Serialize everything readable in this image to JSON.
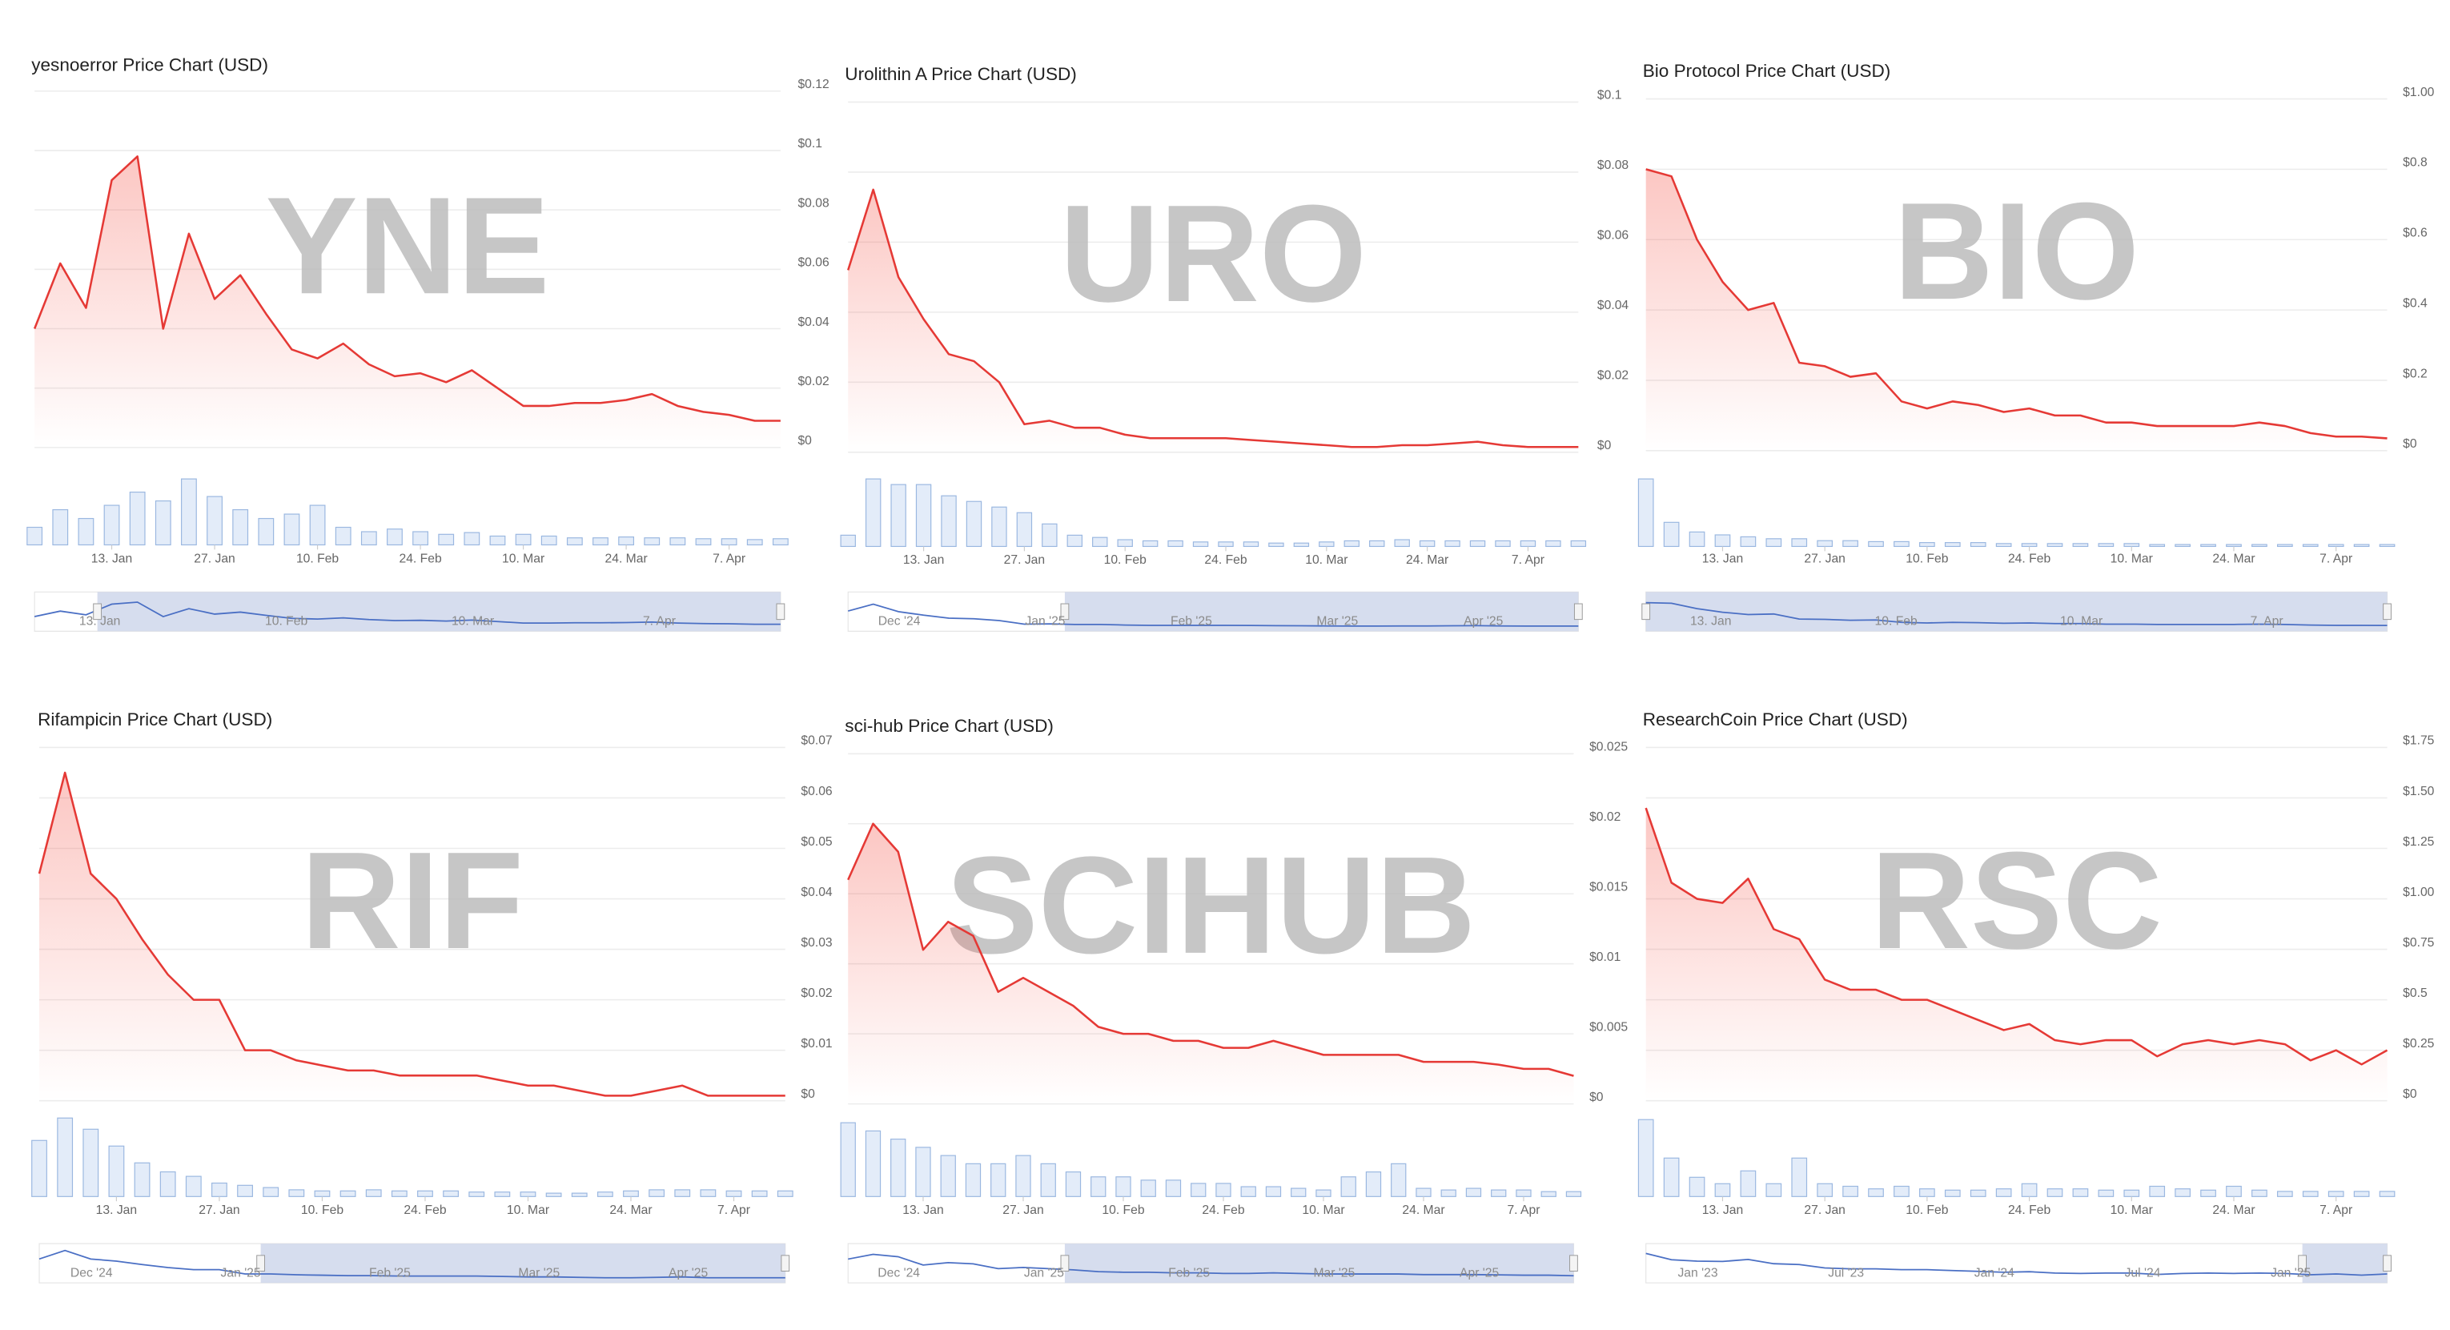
{
  "chart_data": [
    {
      "type": "line",
      "title": "yesnoerror Price Chart (USD)",
      "watermark": "YNE",
      "color": "#e53935",
      "volume_color": "#9ab7e0",
      "values": [
        0.04,
        0.062,
        0.047,
        0.09,
        0.098,
        0.04,
        0.072,
        0.05,
        0.058,
        0.045,
        0.033,
        0.03,
        0.035,
        0.028,
        0.024,
        0.025,
        0.022,
        0.026,
        0.02,
        0.014,
        0.014,
        0.015,
        0.015,
        0.016,
        0.018,
        0.014,
        0.012,
        0.011,
        0.009,
        0.009
      ],
      "volume": [
        20,
        40,
        30,
        45,
        60,
        50,
        75,
        55,
        40,
        30,
        35,
        45,
        20,
        15,
        18,
        15,
        12,
        14,
        10,
        12,
        10,
        8,
        8,
        9,
        8,
        8,
        7,
        7,
        6,
        7
      ],
      "xlim": [
        0,
        29
      ],
      "xticks": [
        {
          "value": 3,
          "label": "13. Jan"
        },
        {
          "value": 7,
          "label": "27. Jan"
        },
        {
          "value": 11,
          "label": "10. Feb"
        },
        {
          "value": 15,
          "label": "24. Feb"
        },
        {
          "value": 19,
          "label": "10. Mar"
        },
        {
          "value": 23,
          "label": "24. Mar"
        },
        {
          "value": 27,
          "label": "7. Apr"
        }
      ],
      "ylim": [
        0,
        0.12
      ],
      "yticks": [
        {
          "value": 0,
          "label": "$0"
        },
        {
          "value": 0.02,
          "label": "$0.02"
        },
        {
          "value": 0.04,
          "label": "$0.04"
        },
        {
          "value": 0.06,
          "label": "$0.06"
        },
        {
          "value": 0.08,
          "label": "$0.08"
        },
        {
          "value": 0.1,
          "label": "$0.1"
        },
        {
          "value": 0.12,
          "label": "$0.12"
        }
      ],
      "grid": true,
      "navigator_labels": [
        "13. Jan",
        "10. Feb",
        "10. Mar",
        "7. Apr"
      ]
    },
    {
      "type": "line",
      "title": "Urolithin A Price Chart (USD)",
      "watermark": "URO",
      "color": "#e53935",
      "volume_color": "#9ab7e0",
      "values": [
        0.052,
        0.075,
        0.05,
        0.038,
        0.028,
        0.026,
        0.02,
        0.008,
        0.009,
        0.007,
        0.007,
        0.005,
        0.004,
        0.004,
        0.004,
        0.004,
        0.0035,
        0.003,
        0.0025,
        0.002,
        0.0015,
        0.0015,
        0.002,
        0.002,
        0.0025,
        0.003,
        0.002,
        0.0015,
        0.0015,
        0.0015
      ],
      "volume": [
        10,
        60,
        55,
        55,
        45,
        40,
        35,
        30,
        20,
        10,
        8,
        6,
        5,
        5,
        4,
        4,
        4,
        3,
        3,
        4,
        5,
        5,
        6,
        5,
        5,
        5,
        5,
        5,
        5,
        5
      ],
      "xlim": [
        0,
        29
      ],
      "xticks": [
        {
          "value": 3,
          "label": "13. Jan"
        },
        {
          "value": 7,
          "label": "27. Jan"
        },
        {
          "value": 11,
          "label": "10. Feb"
        },
        {
          "value": 15,
          "label": "24. Feb"
        },
        {
          "value": 19,
          "label": "10. Mar"
        },
        {
          "value": 23,
          "label": "24. Mar"
        },
        {
          "value": 27,
          "label": "7. Apr"
        }
      ],
      "ylim": [
        0,
        0.1
      ],
      "yticks": [
        {
          "value": 0,
          "label": "$0"
        },
        {
          "value": 0.02,
          "label": "$0.02"
        },
        {
          "value": 0.04,
          "label": "$0.04"
        },
        {
          "value": 0.06,
          "label": "$0.06"
        },
        {
          "value": 0.08,
          "label": "$0.08"
        },
        {
          "value": 0.1,
          "label": "$0.1"
        }
      ],
      "grid": true,
      "navigator_labels": [
        "Dec '24",
        "Jan '25",
        "Feb '25",
        "Mar '25",
        "Apr '25"
      ]
    },
    {
      "type": "line",
      "title": "Bio Protocol Price Chart (USD)",
      "watermark": "BIO",
      "color": "#e53935",
      "volume_color": "#9ab7e0",
      "values": [
        0.8,
        0.78,
        0.6,
        0.48,
        0.4,
        0.42,
        0.25,
        0.24,
        0.21,
        0.22,
        0.14,
        0.12,
        0.14,
        0.13,
        0.11,
        0.12,
        0.1,
        0.1,
        0.08,
        0.08,
        0.07,
        0.07,
        0.07,
        0.07,
        0.08,
        0.07,
        0.05,
        0.04,
        0.04,
        0.035
      ],
      "volume": [
        70,
        25,
        15,
        12,
        10,
        8,
        8,
        6,
        6,
        5,
        5,
        4,
        4,
        4,
        3,
        3,
        3,
        3,
        3,
        3,
        2,
        2,
        2,
        2,
        2,
        2,
        2,
        2,
        2,
        2
      ],
      "xlim": [
        0,
        29
      ],
      "xticks": [
        {
          "value": 3,
          "label": "13. Jan"
        },
        {
          "value": 7,
          "label": "27. Jan"
        },
        {
          "value": 11,
          "label": "10. Feb"
        },
        {
          "value": 15,
          "label": "24. Feb"
        },
        {
          "value": 19,
          "label": "10. Mar"
        },
        {
          "value": 23,
          "label": "24. Mar"
        },
        {
          "value": 27,
          "label": "7. Apr"
        }
      ],
      "ylim": [
        0,
        1
      ],
      "yticks": [
        {
          "value": 0,
          "label": "$0"
        },
        {
          "value": 0.2,
          "label": "$0.2"
        },
        {
          "value": 0.4,
          "label": "$0.4"
        },
        {
          "value": 0.6,
          "label": "$0.6"
        },
        {
          "value": 0.8,
          "label": "$0.8"
        },
        {
          "value": 1,
          "label": "$1.00"
        }
      ],
      "grid": true,
      "navigator_labels": [
        "13. Jan",
        "10. Feb",
        "10. Mar",
        "7. Apr"
      ]
    },
    {
      "type": "line",
      "title": "Rifampicin Price Chart (USD)",
      "watermark": "RIF",
      "color": "#e53935",
      "volume_color": "#9ab7e0",
      "values": [
        0.045,
        0.065,
        0.045,
        0.04,
        0.032,
        0.025,
        0.02,
        0.02,
        0.01,
        0.01,
        0.008,
        0.007,
        0.006,
        0.006,
        0.005,
        0.005,
        0.005,
        0.005,
        0.004,
        0.003,
        0.003,
        0.002,
        0.001,
        0.001,
        0.002,
        0.003,
        0.001,
        0.001,
        0.001,
        0.001
      ],
      "volume": [
        50,
        70,
        60,
        45,
        30,
        22,
        18,
        12,
        10,
        8,
        6,
        5,
        5,
        6,
        5,
        5,
        5,
        4,
        4,
        4,
        3,
        3,
        4,
        5,
        6,
        6,
        6,
        5,
        5,
        5
      ],
      "xlim": [
        0,
        29
      ],
      "xticks": [
        {
          "value": 3,
          "label": "13. Jan"
        },
        {
          "value": 7,
          "label": "27. Jan"
        },
        {
          "value": 11,
          "label": "10. Feb"
        },
        {
          "value": 15,
          "label": "24. Feb"
        },
        {
          "value": 19,
          "label": "10. Mar"
        },
        {
          "value": 23,
          "label": "24. Mar"
        },
        {
          "value": 27,
          "label": "7. Apr"
        }
      ],
      "ylim": [
        0,
        0.07
      ],
      "yticks": [
        {
          "value": 0,
          "label": "$0"
        },
        {
          "value": 0.01,
          "label": "$0.01"
        },
        {
          "value": 0.02,
          "label": "$0.02"
        },
        {
          "value": 0.03,
          "label": "$0.03"
        },
        {
          "value": 0.04,
          "label": "$0.04"
        },
        {
          "value": 0.05,
          "label": "$0.05"
        },
        {
          "value": 0.06,
          "label": "$0.06"
        },
        {
          "value": 0.07,
          "label": "$0.07"
        }
      ],
      "grid": true,
      "navigator_labels": [
        "Dec '24",
        "Jan '25",
        "Feb '25",
        "Mar '25",
        "Apr '25"
      ]
    },
    {
      "type": "line",
      "title": "sci-hub Price Chart (USD)",
      "watermark": "SCIHUB",
      "color": "#e53935",
      "volume_color": "#9ab7e0",
      "values": [
        0.016,
        0.02,
        0.018,
        0.011,
        0.013,
        0.012,
        0.008,
        0.009,
        0.008,
        0.007,
        0.0055,
        0.005,
        0.005,
        0.0045,
        0.0045,
        0.004,
        0.004,
        0.0045,
        0.004,
        0.0035,
        0.0035,
        0.0035,
        0.0035,
        0.003,
        0.003,
        0.003,
        0.0028,
        0.0025,
        0.0025,
        0.002
      ],
      "volume": [
        45,
        40,
        35,
        30,
        25,
        20,
        20,
        25,
        20,
        15,
        12,
        12,
        10,
        10,
        8,
        8,
        6,
        6,
        5,
        4,
        12,
        15,
        20,
        5,
        4,
        5,
        4,
        4,
        3,
        3
      ],
      "xlim": [
        0,
        29
      ],
      "xticks": [
        {
          "value": 3,
          "label": "13. Jan"
        },
        {
          "value": 7,
          "label": "27. Jan"
        },
        {
          "value": 11,
          "label": "10. Feb"
        },
        {
          "value": 15,
          "label": "24. Feb"
        },
        {
          "value": 19,
          "label": "10. Mar"
        },
        {
          "value": 23,
          "label": "24. Mar"
        },
        {
          "value": 27,
          "label": "7. Apr"
        }
      ],
      "ylim": [
        0,
        0.025
      ],
      "yticks": [
        {
          "value": 0,
          "label": "$0"
        },
        {
          "value": 0.005,
          "label": "$0.005"
        },
        {
          "value": 0.01,
          "label": "$0.01"
        },
        {
          "value": 0.015,
          "label": "$0.015"
        },
        {
          "value": 0.02,
          "label": "$0.02"
        },
        {
          "value": 0.025,
          "label": "$0.025"
        }
      ],
      "grid": true,
      "navigator_labels": [
        "Dec '24",
        "Jan '25",
        "Feb '25",
        "Mar '25",
        "Apr '25"
      ]
    },
    {
      "type": "line",
      "title": "ResearchCoin Price Chart (USD)",
      "watermark": "RSC",
      "color": "#e53935",
      "volume_color": "#9ab7e0",
      "values": [
        1.45,
        1.08,
        1.0,
        0.98,
        1.1,
        0.85,
        0.8,
        0.6,
        0.55,
        0.55,
        0.5,
        0.5,
        0.45,
        0.4,
        0.35,
        0.38,
        0.3,
        0.28,
        0.3,
        0.3,
        0.22,
        0.28,
        0.3,
        0.28,
        0.3,
        0.28,
        0.2,
        0.25,
        0.18,
        0.25
      ],
      "volume": [
        60,
        30,
        15,
        10,
        20,
        10,
        30,
        10,
        8,
        6,
        8,
        6,
        5,
        5,
        6,
        10,
        6,
        6,
        5,
        5,
        8,
        6,
        5,
        8,
        5,
        4,
        4,
        4,
        4,
        4
      ],
      "xlim": [
        0,
        29
      ],
      "xticks": [
        {
          "value": 3,
          "label": "13. Jan"
        },
        {
          "value": 7,
          "label": "27. Jan"
        },
        {
          "value": 11,
          "label": "10. Feb"
        },
        {
          "value": 15,
          "label": "24. Feb"
        },
        {
          "value": 19,
          "label": "10. Mar"
        },
        {
          "value": 23,
          "label": "24. Mar"
        },
        {
          "value": 27,
          "label": "7. Apr"
        }
      ],
      "ylim": [
        0,
        1.75
      ],
      "yticks": [
        {
          "value": 0,
          "label": "$0"
        },
        {
          "value": 0.25,
          "label": "$0.25"
        },
        {
          "value": 0.5,
          "label": "$0.5"
        },
        {
          "value": 0.75,
          "label": "$0.75"
        },
        {
          "value": 1,
          "label": "$1.00"
        },
        {
          "value": 1.25,
          "label": "$1.25"
        },
        {
          "value": 1.5,
          "label": "$1.50"
        },
        {
          "value": 1.75,
          "label": "$1.75"
        }
      ],
      "grid": true,
      "navigator_labels": [
        "Jan '23",
        "Jul '23",
        "Jan '24",
        "Jul '24",
        "Jan '25"
      ]
    }
  ]
}
